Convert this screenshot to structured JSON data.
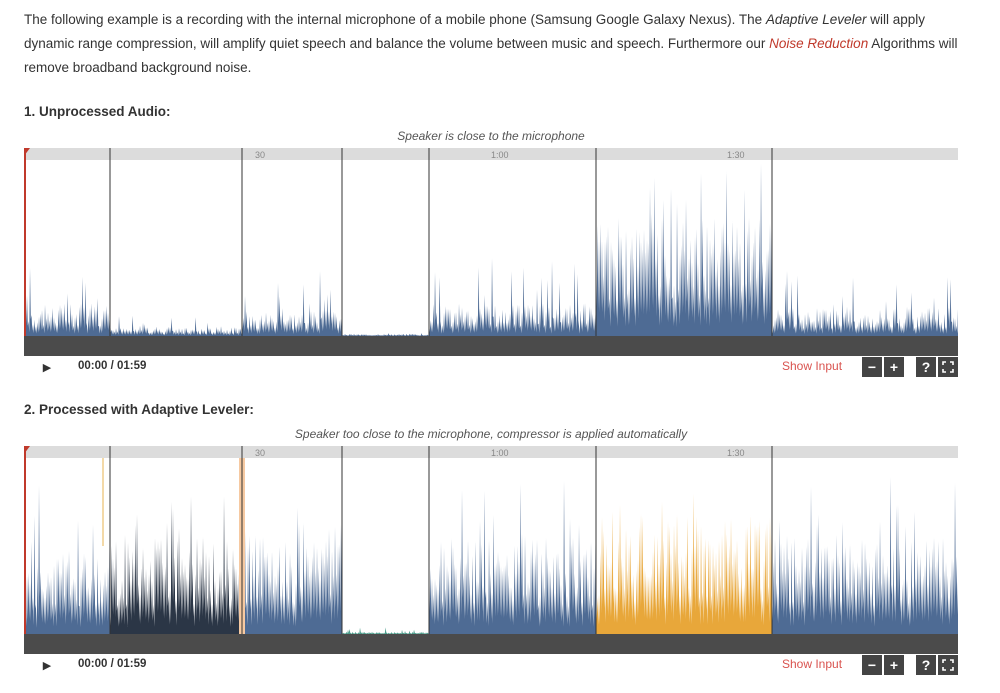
{
  "intro": {
    "part1": "The following example is a recording with the internal microphone of a mobile phone (Samsung Google Galaxy Nexus). The ",
    "adaptive_leveler": "Adaptive Leveler",
    "part2": " will apply dynamic range compression, will amplify quiet speech and balance the volume between music and speech. Furthermore our ",
    "noise_reduction_link": "Noise Reduction",
    "part3": " Algorithms will remove broadband background noise."
  },
  "players": [
    {
      "title": "1. Unprocessed Audio:",
      "annotation": "Speaker is close to the microphone",
      "time_display": "00:00 / 01:59",
      "show_input_label": "Show Input",
      "zoom_out_label": "−",
      "zoom_in_label": "+",
      "help_label": "?",
      "timeline_ticks": [
        "30",
        "1:00",
        "1:30"
      ]
    },
    {
      "title": "2. Processed with Adaptive Leveler:",
      "annotation": "Speaker too close to the microphone, compressor is applied automatically",
      "time_display": "00:00 / 01:59",
      "show_input_label": "Show Input",
      "zoom_out_label": "−",
      "zoom_in_label": "+",
      "help_label": "?",
      "timeline_ticks": [
        "30",
        "1:00",
        "1:30"
      ]
    }
  ],
  "icons": {
    "play": "play-icon",
    "fullscreen": "fullscreen-icon"
  },
  "colors": {
    "waveform": "#4e6b94",
    "waveform_dark": "#2b3646",
    "waveform_orange": "#e8a73a",
    "waveform_teal": "#4c9d8c",
    "peach": "#f6c9a1",
    "timeline_bar": "#dcdcdc",
    "control_bar": "#4b4b4b",
    "playhead": "#c0392b",
    "link_red": "#d9534f"
  }
}
